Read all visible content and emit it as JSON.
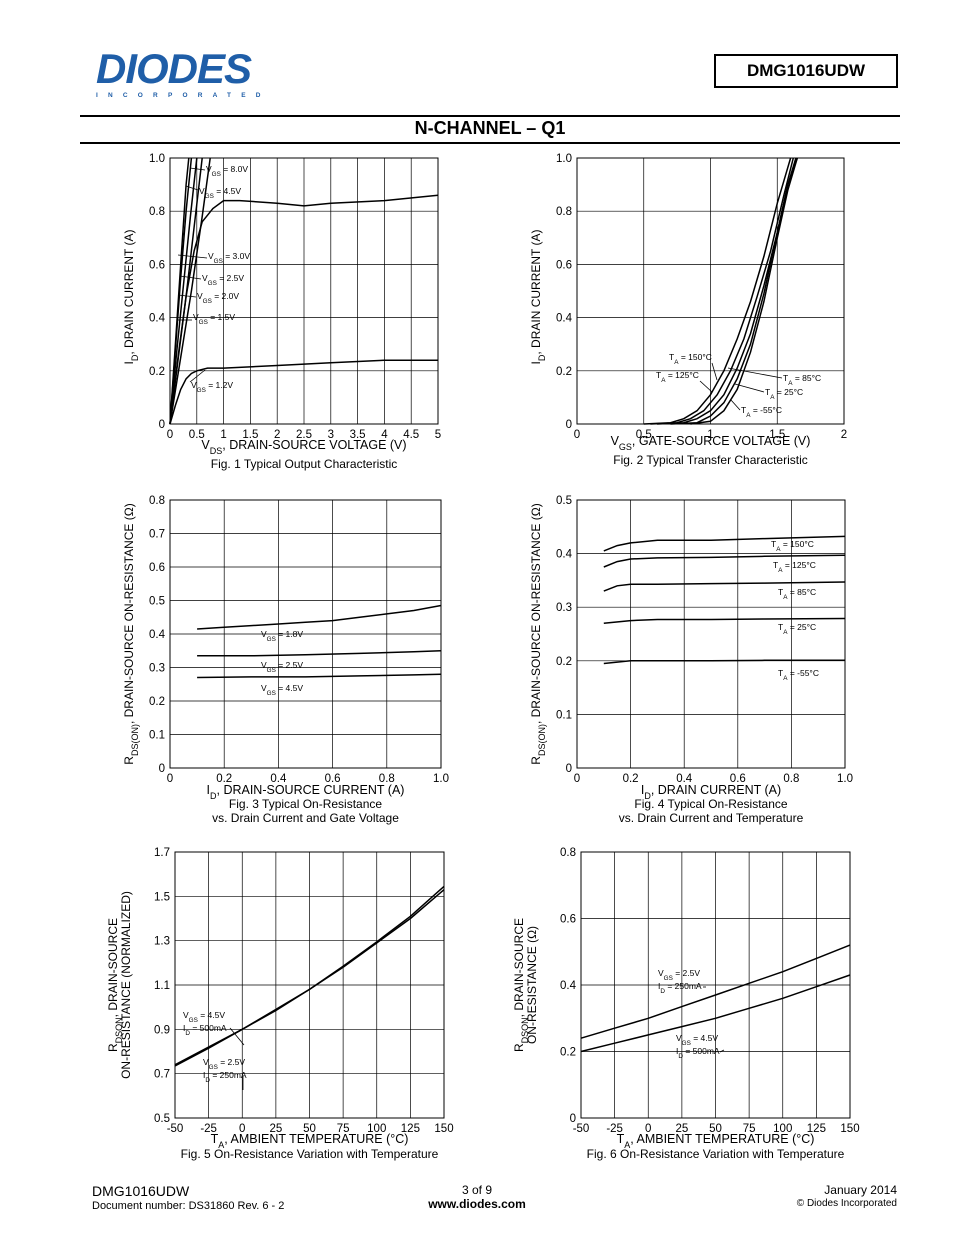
{
  "header": {
    "logo_text": "DIODES",
    "logo_sub": "INCORPORATED",
    "part_number": "DMG1016UDW",
    "section_title": "N-CHANNEL – Q1"
  },
  "footer": {
    "part": "DMG1016UDW",
    "doc_number": "Document number: DS31860 Rev. 6 - 2",
    "page": "3 of 9",
    "website": "www.diodes.com",
    "date": "January 2014",
    "copyright": "© Diodes Incorporated"
  },
  "chart_data": [
    {
      "id": "fig1",
      "type": "line",
      "caption": "Fig. 1 Typical Output Characteristic",
      "xlabel": "VDS, DRAIN-SOURCE VOLTAGE (V)",
      "ylabel": "ID, DRAIN CURRENT (A)",
      "xlim": [
        0,
        5
      ],
      "ylim": [
        0,
        1.0
      ],
      "xticks": [
        "0",
        "0.5",
        "1",
        "1.5",
        "2",
        "2.5",
        "3",
        "3.5",
        "4",
        "4.5",
        "5"
      ],
      "yticks": [
        "0",
        "0.2",
        "0.4",
        "0.6",
        "0.8",
        "1.0"
      ],
      "series": [
        {
          "name": "VGS = 8.0V",
          "x": [
            0,
            0.1,
            0.2,
            0.3,
            0.35
          ],
          "y": [
            0,
            0.3,
            0.6,
            0.9,
            1.0
          ]
        },
        {
          "name": "VGS = 4.5V",
          "x": [
            0,
            0.1,
            0.2,
            0.3,
            0.4
          ],
          "y": [
            0,
            0.28,
            0.55,
            0.8,
            1.0
          ]
        },
        {
          "name": "VGS = 3.0V",
          "x": [
            0,
            0.15,
            0.3,
            0.45,
            0.6,
            0.8,
            1.0,
            1.3,
            2.0,
            2.5,
            3.0,
            4.0,
            5.0
          ],
          "y": [
            0,
            0.25,
            0.48,
            0.65,
            0.76,
            0.81,
            0.84,
            0.84,
            0.83,
            0.82,
            0.83,
            0.84,
            0.86
          ]
        },
        {
          "name": "VGS = 2.5V",
          "x": [
            0,
            0.12,
            0.25,
            0.38,
            0.5
          ],
          "y": [
            0,
            0.26,
            0.52,
            0.78,
            1.0
          ]
        },
        {
          "name": "VGS = 2.0V",
          "x": [
            0,
            0.15,
            0.3,
            0.45,
            0.6
          ],
          "y": [
            0,
            0.24,
            0.48,
            0.74,
            1.0
          ]
        },
        {
          "name": "VGS = 1.5V",
          "x": [
            0,
            0.2,
            0.4,
            0.6,
            0.75
          ],
          "y": [
            0,
            0.25,
            0.5,
            0.78,
            1.0
          ]
        },
        {
          "name": "VGS = 1.2V",
          "x": [
            0,
            0.1,
            0.2,
            0.3,
            0.4,
            0.5,
            0.7,
            1.0,
            2.0,
            3.0,
            4.0,
            5.0
          ],
          "y": [
            0,
            0.07,
            0.13,
            0.17,
            0.19,
            0.2,
            0.21,
            0.21,
            0.22,
            0.23,
            0.24,
            0.24
          ]
        }
      ]
    },
    {
      "id": "fig2",
      "type": "line",
      "caption": "Fig. 2  Typical Transfer Characteristic",
      "xlabel": "VGS, GATE-SOURCE VOLTAGE (V)",
      "ylabel": "ID, DRAIN CURRENT (A)",
      "xlim": [
        0,
        2
      ],
      "ylim": [
        0,
        1.0
      ],
      "xticks": [
        "0",
        "0.5",
        "1",
        "1.5",
        "2"
      ],
      "yticks": [
        "0",
        "0.2",
        "0.4",
        "0.6",
        "0.8",
        "1.0"
      ],
      "series": [
        {
          "name": "TA = 150°C",
          "x": [
            0.5,
            0.7,
            0.8,
            0.9,
            1.0,
            1.1,
            1.2,
            1.3,
            1.4,
            1.5,
            1.6
          ],
          "y": [
            0,
            0.005,
            0.02,
            0.05,
            0.11,
            0.2,
            0.32,
            0.46,
            0.63,
            0.83,
            1.03
          ]
        },
        {
          "name": "TA = 125°C",
          "x": [
            0.55,
            0.75,
            0.85,
            0.95,
            1.05,
            1.15,
            1.25,
            1.35,
            1.45,
            1.55,
            1.62
          ],
          "y": [
            0,
            0.005,
            0.02,
            0.05,
            0.11,
            0.2,
            0.32,
            0.48,
            0.65,
            0.86,
            1.03
          ]
        },
        {
          "name": "TA = 85°C",
          "x": [
            0.6,
            0.8,
            0.9,
            1.0,
            1.1,
            1.2,
            1.3,
            1.4,
            1.5,
            1.58,
            1.64
          ],
          "y": [
            0,
            0.005,
            0.02,
            0.05,
            0.11,
            0.21,
            0.34,
            0.52,
            0.72,
            0.9,
            1.03
          ]
        },
        {
          "name": "TA = 25°C",
          "x": [
            0.7,
            0.9,
            1.0,
            1.1,
            1.2,
            1.3,
            1.4,
            1.5,
            1.58,
            1.65
          ],
          "y": [
            0,
            0.005,
            0.03,
            0.08,
            0.17,
            0.3,
            0.49,
            0.72,
            0.9,
            1.03
          ]
        },
        {
          "name": "TA = -55°C",
          "x": [
            0.85,
            1.0,
            1.1,
            1.2,
            1.3,
            1.4,
            1.5,
            1.58,
            1.65
          ],
          "y": [
            0,
            0.01,
            0.05,
            0.13,
            0.27,
            0.46,
            0.7,
            0.88,
            1.03
          ]
        }
      ]
    },
    {
      "id": "fig3",
      "type": "line",
      "caption": [
        "Fig. 3  Typical On-Resistance",
        "vs. Drain Current and Gate Voltage"
      ],
      "xlabel": "ID, DRAIN-SOURCE CURRENT (A)",
      "ylabel": "RDS(ON), DRAIN-SOURCE ON-RESISTANCE (Ω)",
      "xlim": [
        0,
        1.0
      ],
      "ylim": [
        0,
        0.8
      ],
      "xticks": [
        "0",
        "0.2",
        "0.4",
        "0.6",
        "0.8",
        "1.0"
      ],
      "yticks": [
        "0",
        "0.1",
        "0.2",
        "0.3",
        "0.4",
        "0.5",
        "0.6",
        "0.7",
        "0.8"
      ],
      "series": [
        {
          "name": "VGS = 1.8V",
          "x": [
            0.1,
            0.2,
            0.3,
            0.4,
            0.5,
            0.6,
            0.7,
            0.8,
            0.9,
            1.0
          ],
          "y": [
            0.415,
            0.42,
            0.425,
            0.43,
            0.435,
            0.44,
            0.45,
            0.46,
            0.47,
            0.485
          ]
        },
        {
          "name": "VGS = 2.5V",
          "x": [
            0.1,
            0.3,
            0.5,
            0.7,
            0.9,
            1.0
          ],
          "y": [
            0.335,
            0.335,
            0.338,
            0.342,
            0.347,
            0.35
          ]
        },
        {
          "name": "VGS = 4.5V",
          "x": [
            0.1,
            0.3,
            0.5,
            0.7,
            0.9,
            1.0
          ],
          "y": [
            0.27,
            0.272,
            0.272,
            0.275,
            0.278,
            0.28
          ]
        }
      ]
    },
    {
      "id": "fig4",
      "type": "line",
      "caption": [
        "Fig. 4 Typical On-Resistance",
        "vs. Drain Current and Temperature"
      ],
      "xlabel": "ID, DRAIN CURRENT (A)",
      "ylabel": "RDS(ON), DRAIN-SOURCE ON-RESISTANCE (Ω)",
      "xlim": [
        0,
        1.0
      ],
      "ylim": [
        0,
        0.5
      ],
      "xticks": [
        "0",
        "0.2",
        "0.4",
        "0.6",
        "0.8",
        "1.0"
      ],
      "yticks": [
        "0",
        "0.1",
        "0.2",
        "0.3",
        "0.4",
        "0.5"
      ],
      "series": [
        {
          "name": "TA = 150°C",
          "x": [
            0.1,
            0.15,
            0.2,
            0.3,
            0.5,
            0.7,
            1.0
          ],
          "y": [
            0.405,
            0.415,
            0.42,
            0.425,
            0.425,
            0.428,
            0.432
          ]
        },
        {
          "name": "TA = 125°C",
          "x": [
            0.1,
            0.15,
            0.2,
            0.3,
            0.5,
            0.7,
            1.0
          ],
          "y": [
            0.375,
            0.385,
            0.39,
            0.392,
            0.393,
            0.395,
            0.397
          ]
        },
        {
          "name": "TA = 85°C",
          "x": [
            0.1,
            0.15,
            0.2,
            0.3,
            0.5,
            0.7,
            1.0
          ],
          "y": [
            0.33,
            0.34,
            0.343,
            0.343,
            0.344,
            0.345,
            0.347
          ]
        },
        {
          "name": "TA = 25°C",
          "x": [
            0.1,
            0.2,
            0.3,
            0.5,
            0.7,
            1.0
          ],
          "y": [
            0.27,
            0.275,
            0.277,
            0.277,
            0.278,
            0.279
          ]
        },
        {
          "name": "TA = -55°C",
          "x": [
            0.1,
            0.2,
            0.3,
            0.5,
            0.7,
            1.0
          ],
          "y": [
            0.195,
            0.2,
            0.2,
            0.2,
            0.201,
            0.201
          ]
        }
      ]
    },
    {
      "id": "fig5",
      "type": "line",
      "caption": "Fig. 5 On-Resistance Variation with Temperature",
      "xlabel": "TA, AMBIENT TEMPERATURE (°C)",
      "ylabel": [
        "RDSON, DRAIN-SOURCE",
        "ON-RESISTANCE (NORMALIZED)"
      ],
      "xlim": [
        -50,
        150
      ],
      "ylim": [
        0.5,
        1.7
      ],
      "xticks": [
        "-50",
        "-25",
        "0",
        "25",
        "50",
        "75",
        "100",
        "125",
        "150"
      ],
      "yticks": [
        "0.5",
        "0.7",
        "0.9",
        "1.1",
        "1.3",
        "1.5",
        "1.7"
      ],
      "series": [
        {
          "name": "VGS = 4.5V, ID = 500mA",
          "x": [
            -50,
            -25,
            0,
            25,
            50,
            75,
            100,
            125,
            150
          ],
          "y": [
            0.74,
            0.82,
            0.9,
            0.99,
            1.08,
            1.18,
            1.29,
            1.4,
            1.53
          ]
        },
        {
          "name": "VGS = 2.5V, ID = 250mA",
          "x": [
            -50,
            -25,
            0,
            25,
            50,
            75,
            100,
            125,
            150
          ],
          "y": [
            0.735,
            0.815,
            0.9,
            0.985,
            1.08,
            1.185,
            1.295,
            1.41,
            1.545
          ]
        }
      ]
    },
    {
      "id": "fig6",
      "type": "line",
      "caption": "Fig. 6 On-Resistance Variation with Temperature",
      "xlabel": "TA, AMBIENT TEMPERATURE (°C)",
      "ylabel": [
        "RDSON, DRAIN-SOURCE",
        "ON-RESISTANCE (Ω)"
      ],
      "xlim": [
        -50,
        150
      ],
      "ylim": [
        0,
        0.8
      ],
      "xticks": [
        "-50",
        "-25",
        "0",
        "25",
        "50",
        "75",
        "100",
        "125",
        "150"
      ],
      "yticks": [
        "0",
        "0.2",
        "0.4",
        "0.6",
        "0.8"
      ],
      "series": [
        {
          "name": "VGS = 2.5V, ID = 250mA",
          "x": [
            -50,
            -25,
            0,
            25,
            50,
            75,
            100,
            125,
            150
          ],
          "y": [
            0.24,
            0.27,
            0.3,
            0.335,
            0.37,
            0.405,
            0.44,
            0.48,
            0.52
          ]
        },
        {
          "name": "VGS = 4.5V, ID = 500mA",
          "x": [
            -50,
            -25,
            0,
            25,
            50,
            75,
            100,
            125,
            150
          ],
          "y": [
            0.2,
            0.225,
            0.25,
            0.275,
            0.3,
            0.33,
            0.36,
            0.395,
            0.43
          ]
        }
      ]
    }
  ]
}
